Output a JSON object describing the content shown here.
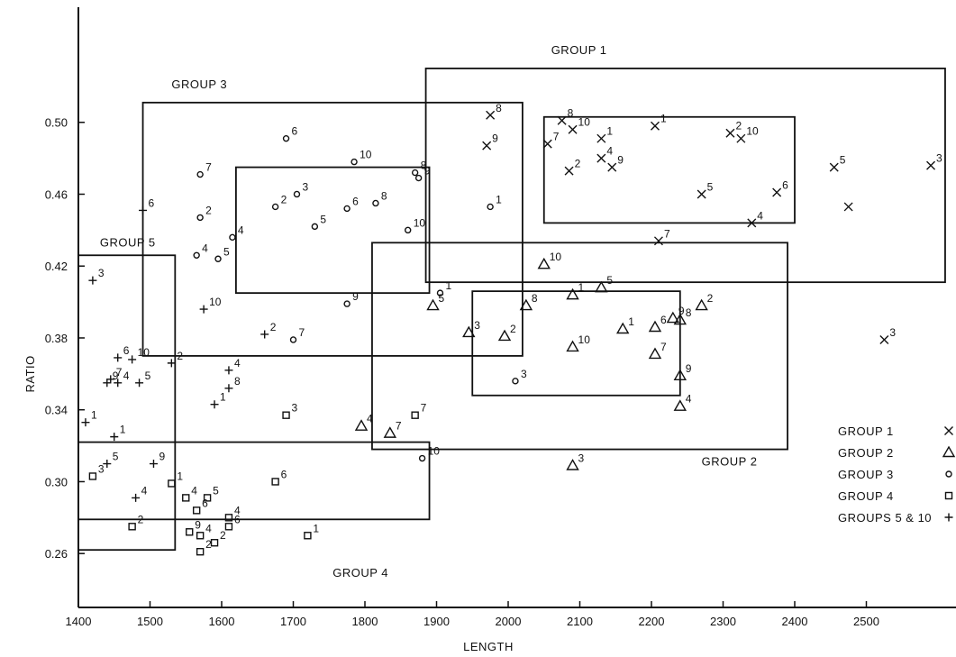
{
  "chart_data": {
    "type": "scatter",
    "title": "",
    "xlabel": "LENGTH",
    "ylabel": "RATIO",
    "xlim": [
      1400,
      2600
    ],
    "ylim": [
      0.23,
      0.54
    ],
    "x_ticks": [
      "1400",
      "1500",
      "1600",
      "1700",
      "1800",
      "1900",
      "2000",
      "2100",
      "2200",
      "2300",
      "2400",
      "2500"
    ],
    "y_ticks": [
      "0.26",
      "0.30",
      "0.34",
      "0.38",
      "0.42",
      "0.46",
      "0.50"
    ],
    "grid": false,
    "legend_position": "right",
    "legend": [
      {
        "label": "GROUP  1",
        "marker": "x"
      },
      {
        "label": "GROUP  2",
        "marker": "triangle"
      },
      {
        "label": "GROUP  3",
        "marker": "circle"
      },
      {
        "label": "GROUP  4",
        "marker": "square"
      },
      {
        "label": "GROUPS  5 & 10",
        "marker": "plus"
      }
    ],
    "regions": [
      {
        "label": "GROUP  1",
        "x": [
          1885,
          2610
        ],
        "y": [
          0.411,
          0.53
        ],
        "label_at": [
          2060,
          0.538
        ]
      },
      {
        "label": "GROUP  1",
        "x": [
          2050,
          2400
        ],
        "y": [
          0.444,
          0.503
        ]
      },
      {
        "label": "GROUP  2",
        "x": [
          1810,
          2390
        ],
        "y": [
          0.318,
          0.433
        ],
        "label_at": [
          2270,
          0.309
        ]
      },
      {
        "label": "GROUP  2",
        "x": [
          1950,
          2240
        ],
        "y": [
          0.348,
          0.406
        ]
      },
      {
        "label": "GROUP  3",
        "x": [
          1490,
          2020
        ],
        "y": [
          0.37,
          0.511
        ],
        "label_at": [
          1530,
          0.519
        ]
      },
      {
        "label": "GROUP  3",
        "x": [
          1620,
          1890
        ],
        "y": [
          0.405,
          0.475
        ]
      },
      {
        "label": "GROUP  4",
        "x": [
          1400,
          1890
        ],
        "y": [
          0.279,
          0.322
        ],
        "label_at": [
          1755,
          0.247
        ]
      },
      {
        "label": "GROUP  5",
        "x": [
          1400,
          1535
        ],
        "y": [
          0.262,
          0.426
        ],
        "label_at": [
          1430,
          0.431
        ]
      }
    ],
    "series": [
      {
        "marker": "x",
        "points": [
          {
            "x": 2075,
            "y": 0.501,
            "label": "8"
          },
          {
            "x": 2090,
            "y": 0.496,
            "label": "10"
          },
          {
            "x": 2130,
            "y": 0.491,
            "label": "1"
          },
          {
            "x": 2205,
            "y": 0.498,
            "label": "1"
          },
          {
            "x": 2310,
            "y": 0.494,
            "label": "2"
          },
          {
            "x": 2325,
            "y": 0.491,
            "label": "10"
          },
          {
            "x": 2055,
            "y": 0.488,
            "label": "7"
          },
          {
            "x": 2085,
            "y": 0.473,
            "label": "2"
          },
          {
            "x": 2130,
            "y": 0.48,
            "label": "4"
          },
          {
            "x": 2145,
            "y": 0.475,
            "label": "9"
          },
          {
            "x": 2270,
            "y": 0.46,
            "label": "5"
          },
          {
            "x": 2375,
            "y": 0.461,
            "label": "6"
          },
          {
            "x": 2340,
            "y": 0.444,
            "label": "4"
          },
          {
            "x": 2210,
            "y": 0.434,
            "label": "7"
          },
          {
            "x": 2455,
            "y": 0.475,
            "label": "5"
          },
          {
            "x": 2590,
            "y": 0.476,
            "label": "3"
          },
          {
            "x": 2475,
            "y": 0.453,
            "label": ""
          },
          {
            "x": 1975,
            "y": 0.504,
            "label": "8"
          },
          {
            "x": 1970,
            "y": 0.487,
            "label": "9"
          },
          {
            "x": 2525,
            "y": 0.379,
            "label": "3"
          }
        ]
      },
      {
        "marker": "triangle",
        "points": [
          {
            "x": 1995,
            "y": 0.381,
            "label": "2"
          },
          {
            "x": 1945,
            "y": 0.383,
            "label": "3"
          },
          {
            "x": 1895,
            "y": 0.398,
            "label": "5"
          },
          {
            "x": 2025,
            "y": 0.398,
            "label": "8"
          },
          {
            "x": 2090,
            "y": 0.404,
            "label": "1"
          },
          {
            "x": 2050,
            "y": 0.421,
            "label": "10"
          },
          {
            "x": 2130,
            "y": 0.408,
            "label": "5"
          },
          {
            "x": 2160,
            "y": 0.385,
            "label": "1"
          },
          {
            "x": 2205,
            "y": 0.386,
            "label": "6"
          },
          {
            "x": 2230,
            "y": 0.391,
            "label": "9"
          },
          {
            "x": 2240,
            "y": 0.39,
            "label": "8"
          },
          {
            "x": 2205,
            "y": 0.371,
            "label": "7"
          },
          {
            "x": 2090,
            "y": 0.375,
            "label": "10"
          },
          {
            "x": 2240,
            "y": 0.359,
            "label": "9"
          },
          {
            "x": 2240,
            "y": 0.342,
            "label": "4"
          },
          {
            "x": 2270,
            "y": 0.398,
            "label": "2"
          },
          {
            "x": 1795,
            "y": 0.331,
            "label": "4"
          },
          {
            "x": 1835,
            "y": 0.327,
            "label": "7"
          },
          {
            "x": 2090,
            "y": 0.309,
            "label": "3"
          }
        ]
      },
      {
        "marker": "circle",
        "points": [
          {
            "x": 1690,
            "y": 0.491,
            "label": "6"
          },
          {
            "x": 1785,
            "y": 0.478,
            "label": "10"
          },
          {
            "x": 1570,
            "y": 0.471,
            "label": "7"
          },
          {
            "x": 1675,
            "y": 0.453,
            "label": "2"
          },
          {
            "x": 1705,
            "y": 0.46,
            "label": "3"
          },
          {
            "x": 1730,
            "y": 0.442,
            "label": "5"
          },
          {
            "x": 1775,
            "y": 0.452,
            "label": "6"
          },
          {
            "x": 1815,
            "y": 0.455,
            "label": "8"
          },
          {
            "x": 1870,
            "y": 0.472,
            "label": "8"
          },
          {
            "x": 1875,
            "y": 0.469,
            "label": "9"
          },
          {
            "x": 1860,
            "y": 0.44,
            "label": "10"
          },
          {
            "x": 1975,
            "y": 0.453,
            "label": "1"
          },
          {
            "x": 1570,
            "y": 0.447,
            "label": "2"
          },
          {
            "x": 1615,
            "y": 0.436,
            "label": "4"
          },
          {
            "x": 1565,
            "y": 0.426,
            "label": "4"
          },
          {
            "x": 1595,
            "y": 0.424,
            "label": "5"
          },
          {
            "x": 1775,
            "y": 0.399,
            "label": "9"
          },
          {
            "x": 1905,
            "y": 0.405,
            "label": "1"
          },
          {
            "x": 1700,
            "y": 0.379,
            "label": "7"
          },
          {
            "x": 2010,
            "y": 0.356,
            "label": "3"
          },
          {
            "x": 1880,
            "y": 0.313,
            "label": "10"
          }
        ]
      },
      {
        "marker": "square",
        "points": [
          {
            "x": 1690,
            "y": 0.337,
            "label": "3"
          },
          {
            "x": 1870,
            "y": 0.337,
            "label": "7"
          },
          {
            "x": 1420,
            "y": 0.303,
            "label": "3"
          },
          {
            "x": 1530,
            "y": 0.299,
            "label": "1"
          },
          {
            "x": 1675,
            "y": 0.3,
            "label": "6"
          },
          {
            "x": 1550,
            "y": 0.291,
            "label": "4"
          },
          {
            "x": 1580,
            "y": 0.291,
            "label": "5"
          },
          {
            "x": 1565,
            "y": 0.284,
            "label": "6"
          },
          {
            "x": 1610,
            "y": 0.28,
            "label": "4"
          },
          {
            "x": 1610,
            "y": 0.275,
            "label": "6"
          },
          {
            "x": 1475,
            "y": 0.275,
            "label": "2"
          },
          {
            "x": 1555,
            "y": 0.272,
            "label": "9"
          },
          {
            "x": 1570,
            "y": 0.27,
            "label": "4"
          },
          {
            "x": 1590,
            "y": 0.266,
            "label": "2"
          },
          {
            "x": 1570,
            "y": 0.261,
            "label": "2"
          },
          {
            "x": 1720,
            "y": 0.27,
            "label": "1"
          }
        ]
      },
      {
        "marker": "plus",
        "points": [
          {
            "x": 1420,
            "y": 0.412,
            "label": "3"
          },
          {
            "x": 1490,
            "y": 0.451,
            "label": "6"
          },
          {
            "x": 1575,
            "y": 0.396,
            "label": "10"
          },
          {
            "x": 1660,
            "y": 0.382,
            "label": "2"
          },
          {
            "x": 1455,
            "y": 0.369,
            "label": "6"
          },
          {
            "x": 1475,
            "y": 0.368,
            "label": "10"
          },
          {
            "x": 1445,
            "y": 0.357,
            "label": "7"
          },
          {
            "x": 1440,
            "y": 0.355,
            "label": "9"
          },
          {
            "x": 1455,
            "y": 0.355,
            "label": "4"
          },
          {
            "x": 1485,
            "y": 0.355,
            "label": "5"
          },
          {
            "x": 1530,
            "y": 0.366,
            "label": "2"
          },
          {
            "x": 1610,
            "y": 0.362,
            "label": "4"
          },
          {
            "x": 1610,
            "y": 0.352,
            "label": "8"
          },
          {
            "x": 1590,
            "y": 0.343,
            "label": "1"
          },
          {
            "x": 1410,
            "y": 0.333,
            "label": "1"
          },
          {
            "x": 1450,
            "y": 0.325,
            "label": "1"
          },
          {
            "x": 1440,
            "y": 0.31,
            "label": "5"
          },
          {
            "x": 1505,
            "y": 0.31,
            "label": "9"
          },
          {
            "x": 1480,
            "y": 0.291,
            "label": "4"
          }
        ]
      }
    ]
  }
}
